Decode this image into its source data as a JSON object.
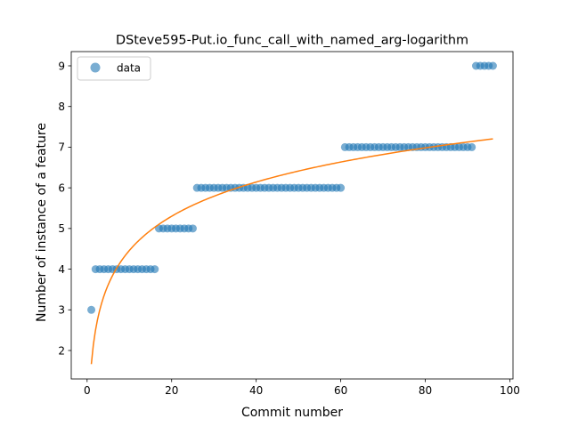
{
  "chart_data": {
    "type": "scatter",
    "title": "DSteve595-Put.io_func_call_with_named_arg-logarithm",
    "xlabel": "Commit number",
    "ylabel": "Number of instance of a feature",
    "xlim": [
      -3.75,
      100.75
    ],
    "ylim": [
      1.3,
      9.35
    ],
    "xticks": [
      0,
      20,
      40,
      60,
      80,
      100
    ],
    "yticks": [
      2,
      3,
      4,
      5,
      6,
      7,
      8,
      9
    ],
    "grid": false,
    "legend": {
      "position": "top-left",
      "entries": [
        "data"
      ]
    },
    "colors": {
      "data": "#1f77b4",
      "fit": "#ff7f0e"
    },
    "series": [
      {
        "name": "data",
        "kind": "scatter",
        "x": [
          1,
          2,
          3,
          4,
          5,
          6,
          7,
          8,
          9,
          10,
          11,
          12,
          13,
          14,
          15,
          16,
          17,
          18,
          19,
          20,
          21,
          22,
          23,
          24,
          25,
          26,
          27,
          28,
          29,
          30,
          31,
          32,
          33,
          34,
          35,
          36,
          37,
          38,
          39,
          40,
          41,
          42,
          43,
          44,
          45,
          46,
          47,
          48,
          49,
          50,
          51,
          52,
          53,
          54,
          55,
          56,
          57,
          58,
          59,
          60,
          61,
          62,
          63,
          64,
          65,
          66,
          67,
          68,
          69,
          70,
          71,
          72,
          73,
          74,
          75,
          76,
          77,
          78,
          79,
          80,
          81,
          82,
          83,
          84,
          85,
          86,
          87,
          88,
          89,
          90,
          91,
          92,
          93,
          94,
          95,
          96
        ],
        "y": [
          3,
          4,
          4,
          4,
          4,
          4,
          4,
          4,
          4,
          4,
          4,
          4,
          4,
          4,
          4,
          4,
          5,
          5,
          5,
          5,
          5,
          5,
          5,
          5,
          5,
          6,
          6,
          6,
          6,
          6,
          6,
          6,
          6,
          6,
          6,
          6,
          6,
          6,
          6,
          6,
          6,
          6,
          6,
          6,
          6,
          6,
          6,
          6,
          6,
          6,
          6,
          6,
          6,
          6,
          6,
          6,
          6,
          6,
          6,
          6,
          7,
          7,
          7,
          7,
          7,
          7,
          7,
          7,
          7,
          7,
          7,
          7,
          7,
          7,
          7,
          7,
          7,
          7,
          7,
          7,
          7,
          7,
          7,
          7,
          7,
          7,
          7,
          7,
          7,
          7,
          7,
          9,
          9,
          9,
          9,
          9
        ]
      },
      {
        "kind": "line",
        "model": "a + b*ln(x)",
        "a": 1.6659,
        "b": 1.2134,
        "x_range": [
          1,
          96
        ]
      }
    ]
  }
}
